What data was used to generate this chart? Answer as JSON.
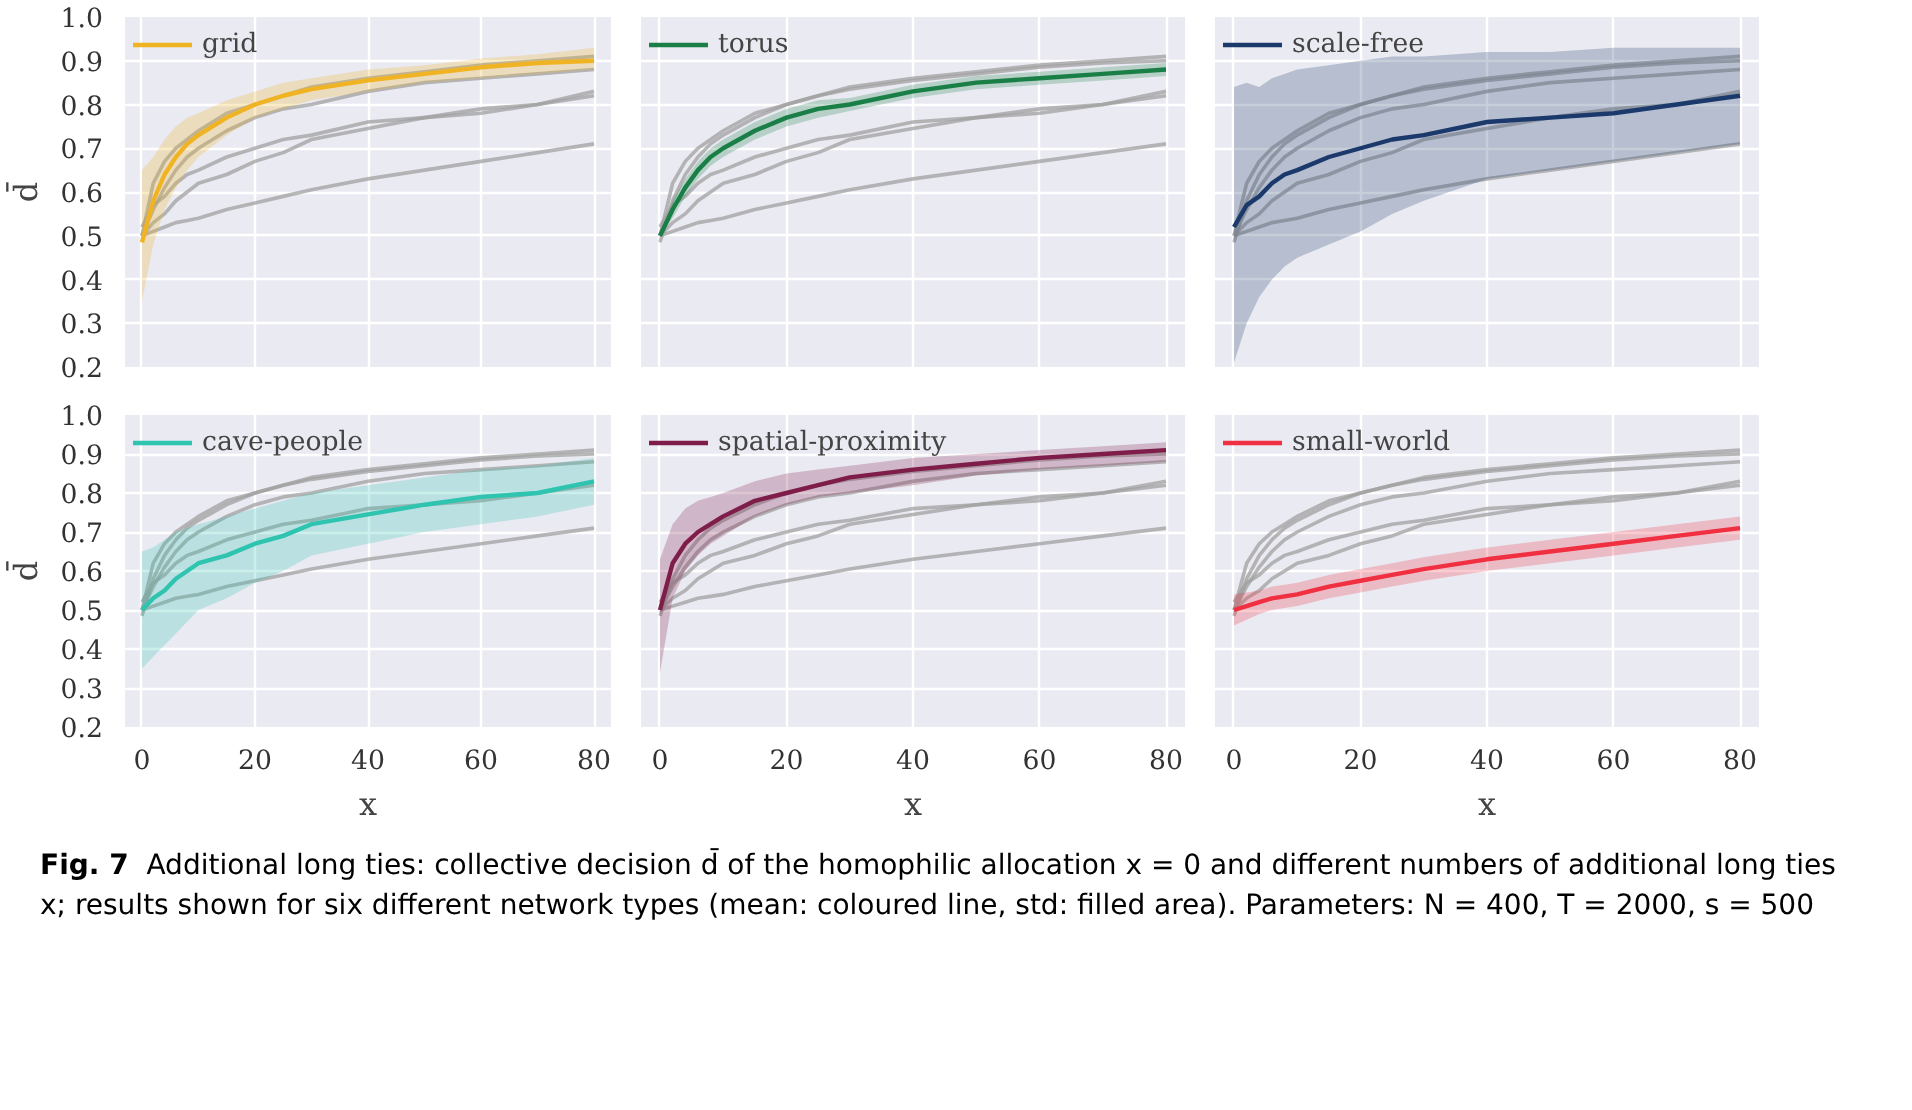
{
  "chart_data": [
    {
      "type": "line",
      "ylabel": "d̄",
      "x": [
        0,
        2,
        4,
        6,
        8,
        10,
        15,
        20,
        25,
        30,
        40,
        50,
        60,
        70,
        80
      ],
      "xlim": [
        -3,
        83
      ],
      "ylim": [
        0.2,
        1.0
      ],
      "xticks": [
        0,
        20,
        40,
        60,
        80
      ],
      "yticks": [
        0.2,
        0.3,
        0.4,
        0.5,
        0.6,
        0.7,
        0.8,
        0.9,
        {
          "value": 1.0,
          "label": "1.0"
        }
      ],
      "grid": true,
      "legend": "top left",
      "tick_labels": "y",
      "marker": "none",
      "line_style": "solid",
      "series": [
        {
          "name": "grid",
          "color": "#f0b323",
          "values": [
            0.485,
            0.58,
            0.64,
            0.68,
            0.71,
            0.73,
            0.77,
            0.8,
            0.82,
            0.835,
            0.855,
            0.87,
            0.885,
            0.895,
            0.9
          ],
          "lower": [
            0.35,
            0.48,
            0.56,
            0.61,
            0.65,
            0.68,
            0.73,
            0.77,
            0.79,
            0.81,
            0.83,
            0.85,
            0.86,
            0.87,
            0.88
          ],
          "upper": [
            0.65,
            0.68,
            0.72,
            0.75,
            0.77,
            0.78,
            0.81,
            0.83,
            0.85,
            0.86,
            0.88,
            0.89,
            0.905,
            0.915,
            0.93
          ]
        },
        {
          "color": "#a0a0a0",
          "values": [
            0.5,
            0.56,
            0.61,
            0.65,
            0.68,
            0.7,
            0.74,
            0.77,
            0.79,
            0.8,
            0.83,
            0.85,
            0.86,
            0.87,
            0.88
          ]
        },
        {
          "color": "#a0a0a0",
          "values": [
            0.52,
            0.57,
            0.59,
            0.62,
            0.64,
            0.65,
            0.68,
            0.7,
            0.72,
            0.73,
            0.76,
            0.77,
            0.78,
            0.8,
            0.82
          ]
        },
        {
          "color": "#a0a0a0",
          "values": [
            0.5,
            0.53,
            0.55,
            0.58,
            0.6,
            0.62,
            0.64,
            0.67,
            0.69,
            0.72,
            0.745,
            0.77,
            0.79,
            0.8,
            0.83
          ]
        },
        {
          "color": "#a0a0a0",
          "values": [
            0.5,
            0.62,
            0.67,
            0.7,
            0.72,
            0.74,
            0.78,
            0.8,
            0.82,
            0.84,
            0.86,
            0.875,
            0.89,
            0.9,
            0.91
          ]
        },
        {
          "color": "#a0a0a0",
          "values": [
            0.5,
            0.51,
            0.52,
            0.53,
            0.535,
            0.54,
            0.56,
            0.575,
            0.59,
            0.605,
            0.63,
            0.65,
            0.67,
            0.69,
            0.71
          ]
        }
      ]
    },
    {
      "type": "line",
      "x": [
        0,
        2,
        4,
        6,
        8,
        10,
        15,
        20,
        25,
        30,
        40,
        50,
        60,
        70,
        80
      ],
      "xlim": [
        -3,
        83
      ],
      "ylim": [
        0.2,
        1.0
      ],
      "xticks": [
        0,
        20,
        40,
        60,
        80
      ],
      "yticks": [
        0.2,
        0.3,
        0.4,
        0.5,
        0.6,
        0.7,
        0.8,
        0.9,
        1.0
      ],
      "grid": true,
      "legend": "top left",
      "tick_labels": false,
      "marker": "none",
      "line_style": "solid",
      "series": [
        {
          "name": "torus",
          "color": "#1a7f46",
          "values": [
            0.5,
            0.56,
            0.61,
            0.65,
            0.68,
            0.7,
            0.74,
            0.77,
            0.79,
            0.8,
            0.83,
            0.85,
            0.86,
            0.87,
            0.88
          ],
          "lower": [
            0.5,
            0.54,
            0.59,
            0.63,
            0.66,
            0.68,
            0.72,
            0.75,
            0.77,
            0.785,
            0.815,
            0.835,
            0.845,
            0.855,
            0.865
          ],
          "upper": [
            0.5,
            0.58,
            0.63,
            0.67,
            0.7,
            0.72,
            0.76,
            0.79,
            0.81,
            0.815,
            0.845,
            0.865,
            0.875,
            0.885,
            0.895
          ]
        },
        {
          "color": "#a0a0a0",
          "values": [
            0.485,
            0.58,
            0.64,
            0.68,
            0.71,
            0.73,
            0.77,
            0.8,
            0.82,
            0.835,
            0.855,
            0.87,
            0.885,
            0.895,
            0.9
          ]
        },
        {
          "color": "#a0a0a0",
          "values": [
            0.52,
            0.57,
            0.59,
            0.62,
            0.64,
            0.65,
            0.68,
            0.7,
            0.72,
            0.73,
            0.76,
            0.77,
            0.78,
            0.8,
            0.82
          ]
        },
        {
          "color": "#a0a0a0",
          "values": [
            0.5,
            0.53,
            0.55,
            0.58,
            0.6,
            0.62,
            0.64,
            0.67,
            0.69,
            0.72,
            0.745,
            0.77,
            0.79,
            0.8,
            0.83
          ]
        },
        {
          "color": "#a0a0a0",
          "values": [
            0.5,
            0.62,
            0.67,
            0.7,
            0.72,
            0.74,
            0.78,
            0.8,
            0.82,
            0.84,
            0.86,
            0.875,
            0.89,
            0.9,
            0.91
          ]
        },
        {
          "color": "#a0a0a0",
          "values": [
            0.5,
            0.51,
            0.52,
            0.53,
            0.535,
            0.54,
            0.56,
            0.575,
            0.59,
            0.605,
            0.63,
            0.65,
            0.67,
            0.69,
            0.71
          ]
        }
      ]
    },
    {
      "type": "line",
      "x": [
        0,
        2,
        4,
        6,
        8,
        10,
        15,
        20,
        25,
        30,
        40,
        50,
        60,
        70,
        80
      ],
      "xlim": [
        -3,
        83
      ],
      "ylim": [
        0.2,
        1.0
      ],
      "xticks": [
        0,
        20,
        40,
        60,
        80
      ],
      "yticks": [
        0.2,
        0.3,
        0.4,
        0.5,
        0.6,
        0.7,
        0.8,
        0.9,
        1.0
      ],
      "grid": true,
      "legend": "top left",
      "tick_labels": false,
      "marker": "none",
      "line_style": "solid",
      "series": [
        {
          "name": "scale-free",
          "color": "#1b3a6b",
          "values": [
            0.52,
            0.57,
            0.59,
            0.62,
            0.64,
            0.65,
            0.68,
            0.7,
            0.72,
            0.73,
            0.76,
            0.77,
            0.78,
            0.8,
            0.82
          ],
          "lower": [
            0.21,
            0.3,
            0.36,
            0.4,
            0.43,
            0.45,
            0.48,
            0.51,
            0.55,
            0.58,
            0.63,
            0.65,
            0.67,
            0.69,
            0.71
          ],
          "upper": [
            0.84,
            0.85,
            0.84,
            0.86,
            0.87,
            0.88,
            0.89,
            0.9,
            0.91,
            0.91,
            0.92,
            0.92,
            0.93,
            0.93,
            0.93
          ]
        },
        {
          "color": "#a0a0a0",
          "values": [
            0.485,
            0.58,
            0.64,
            0.68,
            0.71,
            0.73,
            0.77,
            0.8,
            0.82,
            0.835,
            0.855,
            0.87,
            0.885,
            0.895,
            0.9
          ]
        },
        {
          "color": "#a0a0a0",
          "values": [
            0.5,
            0.56,
            0.61,
            0.65,
            0.68,
            0.7,
            0.74,
            0.77,
            0.79,
            0.8,
            0.83,
            0.85,
            0.86,
            0.87,
            0.88
          ]
        },
        {
          "color": "#a0a0a0",
          "values": [
            0.5,
            0.53,
            0.55,
            0.58,
            0.6,
            0.62,
            0.64,
            0.67,
            0.69,
            0.72,
            0.745,
            0.77,
            0.79,
            0.8,
            0.83
          ]
        },
        {
          "color": "#a0a0a0",
          "values": [
            0.5,
            0.62,
            0.67,
            0.7,
            0.72,
            0.74,
            0.78,
            0.8,
            0.82,
            0.84,
            0.86,
            0.875,
            0.89,
            0.9,
            0.91
          ]
        },
        {
          "color": "#a0a0a0",
          "values": [
            0.5,
            0.51,
            0.52,
            0.53,
            0.535,
            0.54,
            0.56,
            0.575,
            0.59,
            0.605,
            0.63,
            0.65,
            0.67,
            0.69,
            0.71
          ]
        }
      ]
    },
    {
      "type": "line",
      "ylabel": "d̄",
      "xlabel": "x",
      "x": [
        0,
        2,
        4,
        6,
        8,
        10,
        15,
        20,
        25,
        30,
        40,
        50,
        60,
        70,
        80
      ],
      "xlim": [
        -3,
        83
      ],
      "ylim": [
        0.2,
        1.0
      ],
      "xticks": [
        0,
        20,
        40,
        60,
        80
      ],
      "yticks": [
        0.2,
        0.3,
        0.4,
        0.5,
        0.6,
        0.7,
        0.8,
        0.9,
        {
          "value": 1.0,
          "label": "1.0"
        }
      ],
      "grid": true,
      "legend": "top left",
      "marker": "none",
      "line_style": "solid",
      "series": [
        {
          "name": "cave-people",
          "color": "#2ec4b0",
          "values": [
            0.5,
            0.53,
            0.55,
            0.58,
            0.6,
            0.62,
            0.64,
            0.67,
            0.69,
            0.72,
            0.745,
            0.77,
            0.79,
            0.8,
            0.83
          ],
          "lower": [
            0.35,
            0.38,
            0.41,
            0.44,
            0.47,
            0.5,
            0.53,
            0.57,
            0.6,
            0.64,
            0.67,
            0.7,
            0.72,
            0.74,
            0.77
          ],
          "upper": [
            0.65,
            0.66,
            0.68,
            0.7,
            0.71,
            0.72,
            0.74,
            0.76,
            0.78,
            0.8,
            0.82,
            0.84,
            0.86,
            0.87,
            0.89
          ]
        },
        {
          "color": "#a0a0a0",
          "values": [
            0.485,
            0.58,
            0.64,
            0.68,
            0.71,
            0.73,
            0.77,
            0.8,
            0.82,
            0.835,
            0.855,
            0.87,
            0.885,
            0.895,
            0.9
          ]
        },
        {
          "color": "#a0a0a0",
          "values": [
            0.5,
            0.56,
            0.61,
            0.65,
            0.68,
            0.7,
            0.74,
            0.77,
            0.79,
            0.8,
            0.83,
            0.85,
            0.86,
            0.87,
            0.88
          ]
        },
        {
          "color": "#a0a0a0",
          "values": [
            0.52,
            0.57,
            0.59,
            0.62,
            0.64,
            0.65,
            0.68,
            0.7,
            0.72,
            0.73,
            0.76,
            0.77,
            0.78,
            0.8,
            0.82
          ]
        },
        {
          "color": "#a0a0a0",
          "values": [
            0.5,
            0.62,
            0.67,
            0.7,
            0.72,
            0.74,
            0.78,
            0.8,
            0.82,
            0.84,
            0.86,
            0.875,
            0.89,
            0.9,
            0.91
          ]
        },
        {
          "color": "#a0a0a0",
          "values": [
            0.5,
            0.51,
            0.52,
            0.53,
            0.535,
            0.54,
            0.56,
            0.575,
            0.59,
            0.605,
            0.63,
            0.65,
            0.67,
            0.69,
            0.71
          ]
        }
      ]
    },
    {
      "type": "line",
      "xlabel": "x",
      "x": [
        0,
        2,
        4,
        6,
        8,
        10,
        15,
        20,
        25,
        30,
        40,
        50,
        60,
        70,
        80
      ],
      "xlim": [
        -3,
        83
      ],
      "ylim": [
        0.2,
        1.0
      ],
      "xticks": [
        0,
        20,
        40,
        60,
        80
      ],
      "yticks": [
        0.2,
        0.3,
        0.4,
        0.5,
        0.6,
        0.7,
        0.8,
        0.9,
        1.0
      ],
      "grid": true,
      "legend": "top left",
      "tick_labels": "x",
      "marker": "none",
      "line_style": "solid",
      "series": [
        {
          "name": "spatial-proximity",
          "color": "#7f1d4a",
          "values": [
            0.5,
            0.62,
            0.67,
            0.7,
            0.72,
            0.74,
            0.78,
            0.8,
            0.82,
            0.84,
            0.86,
            0.875,
            0.89,
            0.9,
            0.91
          ],
          "lower": [
            0.34,
            0.53,
            0.6,
            0.64,
            0.67,
            0.69,
            0.74,
            0.77,
            0.79,
            0.8,
            0.82,
            0.845,
            0.86,
            0.87,
            0.88
          ],
          "upper": [
            0.63,
            0.72,
            0.76,
            0.78,
            0.79,
            0.8,
            0.83,
            0.85,
            0.86,
            0.87,
            0.89,
            0.9,
            0.91,
            0.92,
            0.93
          ]
        },
        {
          "color": "#a0a0a0",
          "values": [
            0.485,
            0.58,
            0.64,
            0.68,
            0.71,
            0.73,
            0.77,
            0.8,
            0.82,
            0.835,
            0.855,
            0.87,
            0.885,
            0.895,
            0.9
          ]
        },
        {
          "color": "#a0a0a0",
          "values": [
            0.5,
            0.56,
            0.61,
            0.65,
            0.68,
            0.7,
            0.74,
            0.77,
            0.79,
            0.8,
            0.83,
            0.85,
            0.86,
            0.87,
            0.88
          ]
        },
        {
          "color": "#a0a0a0",
          "values": [
            0.52,
            0.57,
            0.59,
            0.62,
            0.64,
            0.65,
            0.68,
            0.7,
            0.72,
            0.73,
            0.76,
            0.77,
            0.78,
            0.8,
            0.82
          ]
        },
        {
          "color": "#a0a0a0",
          "values": [
            0.5,
            0.53,
            0.55,
            0.58,
            0.6,
            0.62,
            0.64,
            0.67,
            0.69,
            0.72,
            0.745,
            0.77,
            0.79,
            0.8,
            0.83
          ]
        },
        {
          "color": "#a0a0a0",
          "values": [
            0.5,
            0.51,
            0.52,
            0.53,
            0.535,
            0.54,
            0.56,
            0.575,
            0.59,
            0.605,
            0.63,
            0.65,
            0.67,
            0.69,
            0.71
          ]
        }
      ]
    },
    {
      "type": "line",
      "xlabel": "x",
      "x": [
        0,
        2,
        4,
        6,
        8,
        10,
        15,
        20,
        25,
        30,
        40,
        50,
        60,
        70,
        80
      ],
      "xlim": [
        -3,
        83
      ],
      "ylim": [
        0.2,
        1.0
      ],
      "xticks": [
        0,
        20,
        40,
        60,
        80
      ],
      "yticks": [
        0.2,
        0.3,
        0.4,
        0.5,
        0.6,
        0.7,
        0.8,
        0.9,
        1.0
      ],
      "grid": true,
      "legend": "top left",
      "tick_labels": "x",
      "marker": "none",
      "line_style": "solid",
      "annotations": [
        "Fig. 7",
        "Additional long ties: collective decision d̄ of the homophilic allocation x = 0 and different numbers of additional long ties x; results shown for six different network types (mean: coloured line, std: filled area). Parameters: N = 400, T = 2000, s = 500"
      ],
      "series": [
        {
          "name": "small-world",
          "color": "#f03040",
          "values": [
            0.5,
            0.51,
            0.52,
            0.53,
            0.535,
            0.54,
            0.56,
            0.575,
            0.59,
            0.605,
            0.63,
            0.65,
            0.67,
            0.69,
            0.71
          ],
          "lower": [
            0.46,
            0.475,
            0.49,
            0.5,
            0.505,
            0.51,
            0.53,
            0.545,
            0.56,
            0.575,
            0.6,
            0.62,
            0.64,
            0.66,
            0.68
          ],
          "upper": [
            0.54,
            0.545,
            0.55,
            0.56,
            0.565,
            0.57,
            0.59,
            0.605,
            0.62,
            0.635,
            0.66,
            0.68,
            0.7,
            0.72,
            0.74
          ]
        },
        {
          "color": "#a0a0a0",
          "values": [
            0.485,
            0.58,
            0.64,
            0.68,
            0.71,
            0.73,
            0.77,
            0.8,
            0.82,
            0.835,
            0.855,
            0.87,
            0.885,
            0.895,
            0.9
          ]
        },
        {
          "color": "#a0a0a0",
          "values": [
            0.5,
            0.56,
            0.61,
            0.65,
            0.68,
            0.7,
            0.74,
            0.77,
            0.79,
            0.8,
            0.83,
            0.85,
            0.86,
            0.87,
            0.88
          ]
        },
        {
          "color": "#a0a0a0",
          "values": [
            0.52,
            0.57,
            0.59,
            0.62,
            0.64,
            0.65,
            0.68,
            0.7,
            0.72,
            0.73,
            0.76,
            0.77,
            0.78,
            0.8,
            0.82
          ]
        },
        {
          "color": "#a0a0a0",
          "values": [
            0.5,
            0.53,
            0.55,
            0.58,
            0.6,
            0.62,
            0.64,
            0.67,
            0.69,
            0.72,
            0.745,
            0.77,
            0.79,
            0.8,
            0.83
          ]
        },
        {
          "color": "#a0a0a0",
          "values": [
            0.5,
            0.62,
            0.67,
            0.7,
            0.72,
            0.74,
            0.78,
            0.8,
            0.82,
            0.84,
            0.86,
            0.875,
            0.89,
            0.9,
            0.91
          ]
        }
      ]
    }
  ]
}
